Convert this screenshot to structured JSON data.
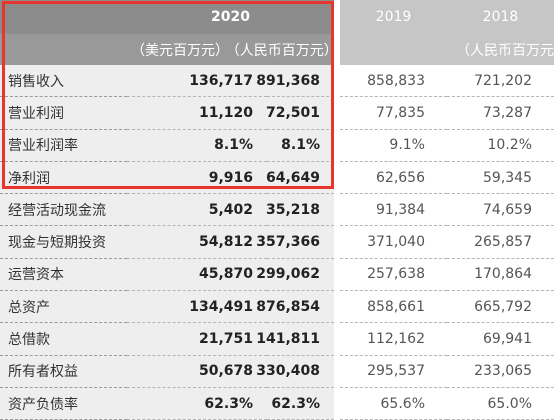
{
  "header": {
    "year_2020": "2020",
    "year_2019": "2019",
    "year_2018": "2018",
    "unit_usd": "（美元百万元）",
    "unit_cny": "（人民币百万元）",
    "unit_prior": "（人民币百万元"
  },
  "rows": [
    {
      "label": "销售收入",
      "usd_2020": "136,717",
      "cny_2020": "891,368",
      "cny_2019": "858,833",
      "cny_2018": "721,202"
    },
    {
      "label": "营业利润",
      "usd_2020": "11,120",
      "cny_2020": "72,501",
      "cny_2019": "77,835",
      "cny_2018": "73,287"
    },
    {
      "label": "营业利润率",
      "usd_2020": "8.1%",
      "cny_2020": "8.1%",
      "cny_2019": "9.1%",
      "cny_2018": "10.2%"
    },
    {
      "label": "净利润",
      "usd_2020": "9,916",
      "cny_2020": "64,649",
      "cny_2019": "62,656",
      "cny_2018": "59,345"
    },
    {
      "label": "经营活动现金流",
      "usd_2020": "5,402",
      "cny_2020": "35,218",
      "cny_2019": "91,384",
      "cny_2018": "74,659"
    },
    {
      "label": "现金与短期投资",
      "usd_2020": "54,812",
      "cny_2020": "357,366",
      "cny_2019": "371,040",
      "cny_2018": "265,857"
    },
    {
      "label": "运营资本",
      "usd_2020": "45,870",
      "cny_2020": "299,062",
      "cny_2019": "257,638",
      "cny_2018": "170,864"
    },
    {
      "label": "总资产",
      "usd_2020": "134,491",
      "cny_2020": "876,854",
      "cny_2019": "858,661",
      "cny_2018": "665,792"
    },
    {
      "label": "总借款",
      "usd_2020": "21,751",
      "cny_2020": "141,811",
      "cny_2019": "112,162",
      "cny_2018": "69,941"
    },
    {
      "label": "所有者权益",
      "usd_2020": "50,678",
      "cny_2020": "330,408",
      "cny_2019": "295,537",
      "cny_2018": "233,065"
    },
    {
      "label": "资产负债率",
      "usd_2020": "62.3%",
      "cny_2020": "62.3%",
      "cny_2019": "65.6%",
      "cny_2018": "65.0%"
    }
  ],
  "colors": {
    "header_dark": "#8c8c8c",
    "header_light": "#c6c6c6",
    "row_shade": "#eeeeee",
    "highlight_border": "#e8362e"
  }
}
